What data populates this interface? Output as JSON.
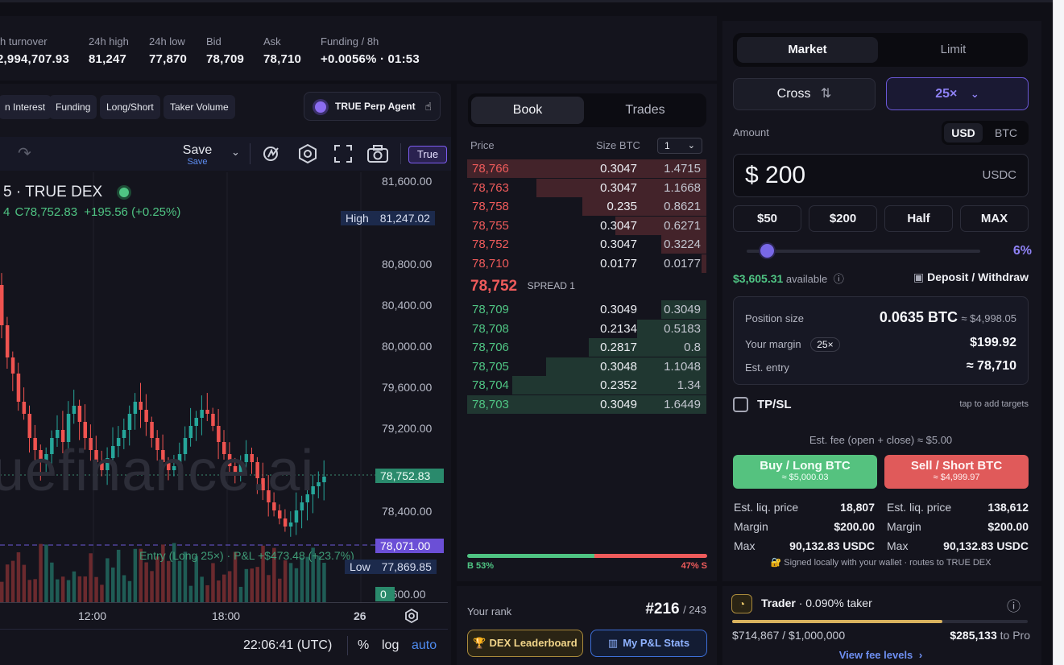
{
  "stats": [
    {
      "label": "h turnover",
      "value": "2,994,707.93"
    },
    {
      "label": "24h high",
      "value": "81,247"
    },
    {
      "label": "24h low",
      "value": "77,870"
    },
    {
      "label": "Bid",
      "value": "78,709"
    },
    {
      "label": "Ask",
      "value": "78,710"
    },
    {
      "label": "Funding / 8h",
      "value": "+0.0056% · 01:53"
    }
  ],
  "chart_tabs": [
    "n Interest",
    "Funding",
    "Long/Short",
    "Taker Volume"
  ],
  "agent_label": "TRUE Perp Agent",
  "toolbar": {
    "save": "Save",
    "save_sub": "Save",
    "true_label": "True"
  },
  "chart": {
    "symbol_line": "5 · TRUE DEX",
    "ohlc_prefix": "4",
    "ohlc_close": "C78,752.83",
    "ohlc_change": "+195.56 (+0.25%)",
    "watermark": "uefinance.ai",
    "y_ticks": [
      "81,600.00",
      "80,800.00",
      "80,400.00",
      "80,000.00",
      "79,600.00",
      "79,200.00",
      "78,400.00",
      "7,600.00"
    ],
    "high_label": "High",
    "high_value": "81,247.02",
    "last_price": "78,752.83",
    "entry_price": "78,071.00",
    "entry_text": "Entry (Long 25×) · P&L +$473.48 (+23.7%)",
    "low_label": "Low",
    "low_value": "77,869.85",
    "vol_label": "0",
    "x_ticks": [
      "12:00",
      "18:00",
      "26"
    ],
    "time": "22:06:41 (UTC)",
    "pct": "%",
    "log": "log",
    "auto": "auto"
  },
  "book": {
    "tab_active": "Book",
    "tab_other": "Trades",
    "col_price": "Price",
    "col_size": "Size BTC",
    "step": "1",
    "asks": [
      {
        "price": "78,766",
        "size": "0.3047",
        "total": "1.4715",
        "depth": 1.0
      },
      {
        "price": "78,763",
        "size": "0.3047",
        "total": "1.1668",
        "depth": 0.71
      },
      {
        "price": "78,758",
        "size": "0.235",
        "total": "0.8621",
        "depth": 0.52
      },
      {
        "price": "78,755",
        "size": "0.3047",
        "total": "0.6271",
        "depth": 0.38
      },
      {
        "price": "78,752",
        "size": "0.3047",
        "total": "0.3224",
        "depth": 0.19
      },
      {
        "price": "78,710",
        "size": "0.0177",
        "total": "0.0177",
        "depth": 0.02
      }
    ],
    "mid": "78,752",
    "spread": "SPREAD 1",
    "bids": [
      {
        "price": "78,709",
        "size": "0.3049",
        "total": "0.3049",
        "depth": 0.19
      },
      {
        "price": "78,708",
        "size": "0.2134",
        "total": "0.5183",
        "depth": 0.29
      },
      {
        "price": "78,706",
        "size": "0.2817",
        "total": "0.8",
        "depth": 0.49
      },
      {
        "price": "78,705",
        "size": "0.3048",
        "total": "1.1048",
        "depth": 0.67
      },
      {
        "price": "78,704",
        "size": "0.2352",
        "total": "1.34",
        "depth": 0.81
      },
      {
        "price": "78,703",
        "size": "0.3049",
        "total": "1.6449",
        "depth": 1.0
      }
    ],
    "buy_pct": "B 53%",
    "sell_pct": "47% S",
    "buy_ratio": 0.53,
    "colors": {
      "bid": "#4fc483",
      "ask": "#ef5b5b"
    }
  },
  "rank": {
    "label": "Your rank",
    "value": "#216",
    "of": "/ 243",
    "leaderboard": "DEX Leaderboard",
    "pnl": "My P&L Stats"
  },
  "form": {
    "market": "Market",
    "limit": "Limit",
    "margin_mode": "Cross",
    "leverage": "25×",
    "amount_label": "Amount",
    "unit_active": "USD",
    "unit_other": "BTC",
    "amount_value": "$ 200",
    "amount_unit": "USDC",
    "quick": [
      "$50",
      "$200",
      "Half",
      "MAX"
    ],
    "slider_pct": "6%",
    "slider_fraction": 0.06,
    "available_value": "$3,605.31",
    "available_label": "available",
    "deposit": "Deposit / Withdraw",
    "position_size_label": "Position size",
    "position_size": "0.0635 BTC",
    "position_usd": "≈ $4,998.05",
    "margin_label": "Your margin",
    "margin_badge": "25×",
    "margin_value": "$199.92",
    "entry_label": "Est. entry",
    "entry_value": "≈ 78,710",
    "tpsl": "TP/SL",
    "tpsl_hint": "tap to add targets",
    "fee_note": "Est. fee (open + close) ≈ $5.00",
    "buy_label": "Buy / Long BTC",
    "buy_sub": "≈ $5,000.03",
    "sell_label": "Sell / Short BTC",
    "sell_sub": "≈ $4,999.97",
    "long": {
      "liq_label": "Est. liq. price",
      "liq": "18,807",
      "margin_label": "Margin",
      "margin": "$200.00",
      "max_label": "Max",
      "max": "90,132.83 USDC"
    },
    "short": {
      "liq_label": "Est. liq. price",
      "liq": "138,612",
      "margin_label": "Margin",
      "margin": "$200.00",
      "max_label": "Max",
      "max": "90,132.83 USDC"
    },
    "signed_note": "Signed locally with your wallet · routes to TRUE DEX"
  },
  "tier": {
    "trader": "Trader",
    "taker": "· 0.090% taker",
    "progress_text": "$714,867 / $1,000,000",
    "progress_fraction": 0.71,
    "to_pro_value": "$285,133",
    "to_pro_label": "to Pro",
    "view_fee": "View fee levels"
  }
}
